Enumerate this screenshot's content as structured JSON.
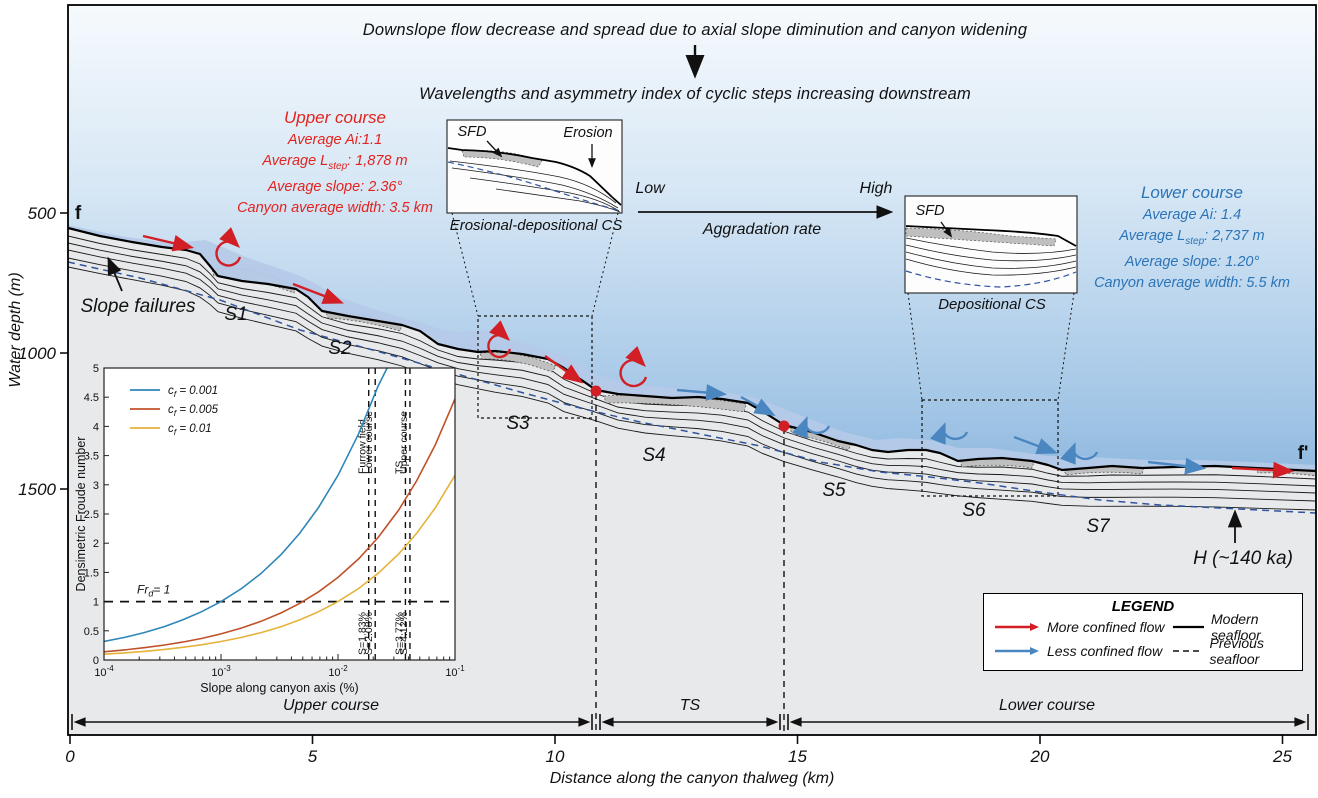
{
  "header": {
    "title_line1": "Downslope flow decrease and spread due to axial slope diminution and canyon widening",
    "title_line2": "Wavelengths and asymmetry index of cyclic steps increasing downstream"
  },
  "upper_stats": {
    "title": "Upper course",
    "ai": "Average Ai:1.1",
    "lstep": {
      "prefix": "Average L",
      "sub": "step",
      "suffix": ": 1,878 m"
    },
    "slope": "Average slope: 2.36°",
    "width": "Canyon average width: 3.5 km"
  },
  "lower_stats": {
    "title": "Lower course",
    "ai": "Average Ai: 1.4",
    "lstep": {
      "prefix": "Average L",
      "sub": "step",
      "suffix": ": 2,737 m"
    },
    "slope": "Average slope: 1.20°",
    "width": "Canyon average width: 5.5 km"
  },
  "insets": {
    "erosional": {
      "sfd": "SFD",
      "erosion": "Erosion",
      "caption": "Erosional-depositional CS"
    },
    "depositional": {
      "sfd": "SFD",
      "caption": "Depositional CS"
    }
  },
  "aggradation": {
    "low": "Low",
    "high": "High",
    "label": "Aggradation rate"
  },
  "profile": {
    "start_marker": "f",
    "end_marker": "f'",
    "slope_failures": "Slope failures",
    "h_label": "H (~140 ka)",
    "steps": [
      "S1",
      "S2",
      "S3",
      "S4",
      "S5",
      "S6",
      "S7"
    ]
  },
  "axes": {
    "y_label": "Water depth (m)",
    "y_ticks": [
      "500",
      "1000",
      "1500"
    ],
    "x_label": "Distance along the canyon thalweg (km)",
    "x_ticks": [
      "0",
      "5",
      "10",
      "15",
      "20",
      "25"
    ]
  },
  "segments": {
    "upper": "Upper course",
    "ts": "TS",
    "lower": "Lower course"
  },
  "legend": {
    "title": "LEGEND",
    "more_confined": "More confined flow",
    "less_confined": "Less confined flow",
    "modern": "Modern seafloor",
    "previous": "Previous seafloor"
  },
  "colors": {
    "red_flow": "#d21f26",
    "blue_flow": "#4a86c0",
    "red_text": "#e2231e",
    "blue_text": "#2b74b8",
    "previous_seafloor": "#30549e",
    "sfd_envelope": "#b5cae8",
    "deposit_gray": "#bfbfbf",
    "underground": "#e8e9ea"
  },
  "chart_data": {
    "type": "line",
    "title": "",
    "xlabel": "Slope along canyon axis (%)",
    "ylabel": "Densimetric Froude number",
    "x_scale": "log",
    "xlim": [
      0.0001,
      0.1
    ],
    "ylim": [
      0,
      5
    ],
    "grid": false,
    "legend_position": "upper left",
    "y_ticks": [
      0,
      0.5,
      1,
      1.5,
      2,
      2.5,
      3,
      3.5,
      4,
      4.5,
      5
    ],
    "x_tick_exponents": [
      -4,
      -3,
      -2,
      -1
    ],
    "x": [
      0.0001,
      0.00015,
      0.00022,
      0.00033,
      0.00047,
      0.00068,
      0.001,
      0.0015,
      0.0022,
      0.0033,
      0.0047,
      0.0068,
      0.01,
      0.015,
      0.022,
      0.033,
      0.047,
      0.068,
      0.1
    ],
    "series": [
      {
        "name": {
          "prefix": "c",
          "sub": "f",
          "suffix": " = 0.001"
        },
        "color": "#2e86b8",
        "y": [
          0.316,
          0.387,
          0.469,
          0.574,
          0.686,
          0.825,
          1.0,
          1.225,
          1.483,
          1.817,
          2.168,
          2.608,
          3.162,
          3.873,
          4.69,
          5.745,
          6.856,
          8.246,
          10.0
        ]
      },
      {
        "name": {
          "prefix": "c",
          "sub": "f",
          "suffix": " = 0.005"
        },
        "color": "#c0522a",
        "y": [
          0.141,
          0.173,
          0.21,
          0.257,
          0.307,
          0.369,
          0.447,
          0.548,
          0.663,
          0.812,
          0.97,
          1.166,
          1.414,
          1.732,
          2.098,
          2.569,
          3.066,
          3.688,
          4.472
        ]
      },
      {
        "name": {
          "prefix": "c",
          "sub": "f",
          "suffix": " = 0.01"
        },
        "color": "#e5b23a",
        "y": [
          0.1,
          0.122,
          0.148,
          0.182,
          0.217,
          0.261,
          0.316,
          0.387,
          0.469,
          0.574,
          0.686,
          0.825,
          1.0,
          1.225,
          1.483,
          1.817,
          2.168,
          2.608,
          3.162
        ]
      }
    ],
    "reference_line": {
      "y": 1,
      "label": {
        "prefix": "Fr",
        "sub": "d",
        "suffix": "= 1"
      }
    },
    "vlines": [
      {
        "x": 0.0183,
        "top_label": "Furrow field",
        "bottom_label": "S=1.83%"
      },
      {
        "x": 0.0208,
        "top_label": "Lower course",
        "bottom_label": "S=2.08%"
      },
      {
        "x": 0.0377,
        "top_label": "TS",
        "bottom_label": "S=3.77%"
      },
      {
        "x": 0.0412,
        "top_label": "Upper course",
        "bottom_label": "S=4.12%"
      }
    ]
  }
}
